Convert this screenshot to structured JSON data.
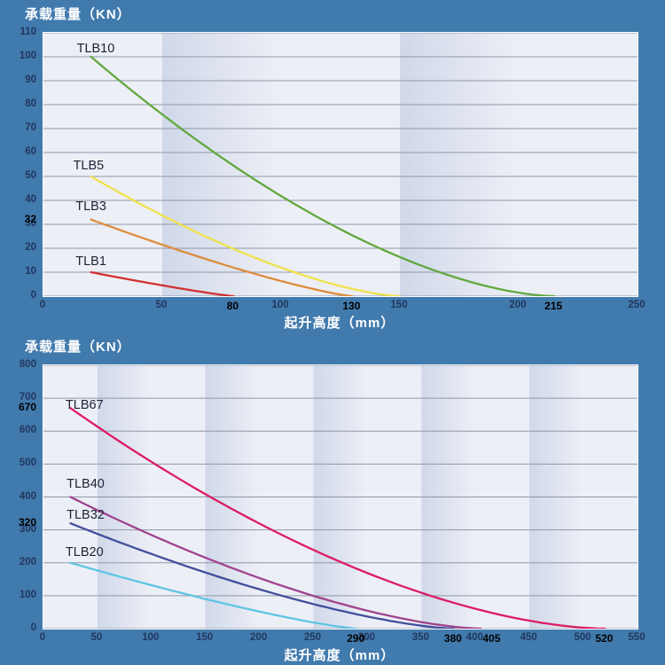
{
  "page": {
    "background": "#417aad",
    "plot_band_light": "#edeff6",
    "plot_band_dark": "#d0d8e9",
    "gridline_color": "#8f97a9",
    "title_color": "#ffffff",
    "tick_regular_color": "#21375e",
    "tick_special_color": "#000000",
    "series_label_color": "#1c2333"
  },
  "chart_data": [
    {
      "type": "line",
      "title": "承载重量（KN）",
      "xlabel": "起升高度（mm）",
      "xlim": [
        0,
        250
      ],
      "ylim": [
        0,
        110
      ],
      "band_interval": 50,
      "grid": "horizontal",
      "y_ticks": [
        0,
        10,
        20,
        30,
        40,
        50,
        60,
        70,
        80,
        90,
        100,
        110
      ],
      "y_ticks_special": [
        {
          "value": 32
        }
      ],
      "x_ticks": [
        0,
        50,
        100,
        150,
        200,
        250
      ],
      "x_ticks_special": [
        {
          "value": 80
        },
        {
          "value": 130
        },
        {
          "value": 215
        }
      ],
      "series": [
        {
          "name": "TLB10",
          "color": "#62a83e",
          "start_x": 20,
          "start_y": 100,
          "end_x": 215,
          "end_y": 0,
          "exponent": 1.65,
          "label_x": 22,
          "label_y": 103.5
        },
        {
          "name": "TLB5",
          "color": "#efe24e",
          "start_x": 20,
          "start_y": 50,
          "end_x": 150,
          "end_y": 0,
          "exponent": 1.5,
          "label_x": 19,
          "label_y": 54.5
        },
        {
          "name": "TLB3",
          "color": "#dd8c3e",
          "start_x": 20,
          "start_y": 32,
          "end_x": 130,
          "end_y": 0,
          "exponent": 1.25,
          "label_x": 20,
          "label_y": 37.5
        },
        {
          "name": "TLB1",
          "color": "#d23131",
          "start_x": 20,
          "start_y": 10,
          "end_x": 80,
          "end_y": 0,
          "exponent": 1.15,
          "label_x": 20,
          "label_y": 14.5
        }
      ]
    },
    {
      "type": "line",
      "title": "承载重量（KN）",
      "xlabel": "起升高度（mm）",
      "xlim": [
        0,
        550
      ],
      "ylim": [
        0,
        800
      ],
      "band_interval": 50,
      "grid": "horizontal",
      "y_ticks": [
        0,
        100,
        200,
        300,
        400,
        500,
        600,
        700,
        800
      ],
      "y_ticks_special": [
        {
          "value": 670
        },
        {
          "value": 320
        }
      ],
      "x_ticks": [
        0,
        50,
        100,
        150,
        200,
        250,
        300,
        350,
        400,
        450,
        500,
        550
      ],
      "x_ticks_special": [
        {
          "value": 290
        },
        {
          "value": 380
        },
        {
          "value": 405,
          "dx": 13
        },
        {
          "value": 520
        }
      ],
      "series": [
        {
          "name": "TLB67",
          "color": "#dc1c64",
          "start_x": 25,
          "start_y": 670,
          "end_x": 520,
          "end_y": 0,
          "exponent": 1.7,
          "label_x": 38,
          "label_y": 680
        },
        {
          "name": "TLB40",
          "color": "#a0438e",
          "start_x": 25,
          "start_y": 400,
          "end_x": 405,
          "end_y": 0,
          "exponent": 1.55,
          "label_x": 39,
          "label_y": 440
        },
        {
          "name": "TLB32",
          "color": "#414f9c",
          "start_x": 25,
          "start_y": 320,
          "end_x": 380,
          "end_y": 0,
          "exponent": 1.45,
          "label_x": 39,
          "label_y": 344
        },
        {
          "name": "TLB20",
          "color": "#5fc5e4",
          "start_x": 25,
          "start_y": 200,
          "end_x": 290,
          "end_y": 0,
          "exponent": 1.25,
          "label_x": 38,
          "label_y": 231
        }
      ]
    }
  ]
}
